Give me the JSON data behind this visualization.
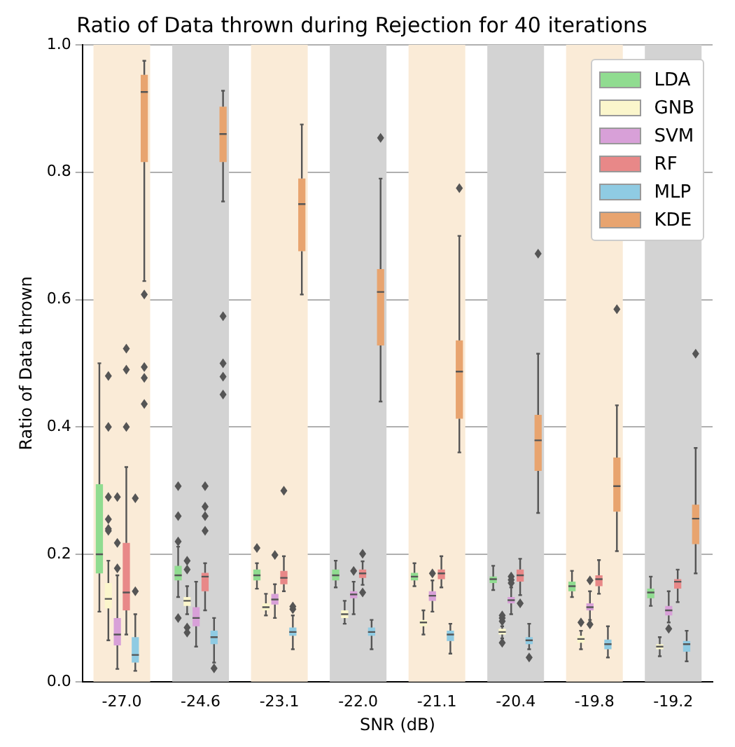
{
  "chart_data": {
    "type": "box",
    "title": "Ratio of Data thrown during Rejection for 40 iterations",
    "xlabel": "SNR (dB)",
    "ylabel": "Ratio of Data thrown",
    "categories": [
      "-27.0",
      "-24.6",
      "-23.1",
      "-22.0",
      "-21.1",
      "-20.4",
      "-19.8",
      "-19.2"
    ],
    "ylim": [
      0,
      1
    ],
    "yticks": [
      {
        "value": 0,
        "label": "0.0"
      },
      {
        "value": 0.2,
        "label": "0.2"
      },
      {
        "value": 0.4,
        "label": "0.4"
      },
      {
        "value": 0.6,
        "label": "0.6"
      },
      {
        "value": 0.8,
        "label": "0.8"
      },
      {
        "value": 1,
        "label": "1.0"
      }
    ],
    "grid": "y",
    "legend": "top right",
    "bands": [
      {
        "axis": "x",
        "from": "-27.0",
        "to": "-27.0",
        "color": "#faebd7"
      },
      {
        "axis": "x",
        "from": "-24.6",
        "to": "-24.6",
        "color": "#d3d3d3"
      },
      {
        "axis": "x",
        "from": "-23.1",
        "to": "-23.1",
        "color": "#faebd7"
      },
      {
        "axis": "x",
        "from": "-22.0",
        "to": "-22.0",
        "color": "#d3d3d3"
      },
      {
        "axis": "x",
        "from": "-21.1",
        "to": "-21.1",
        "color": "#faebd7"
      },
      {
        "axis": "x",
        "from": "-20.4",
        "to": "-20.4",
        "color": "#d3d3d3"
      },
      {
        "axis": "x",
        "from": "-19.8",
        "to": "-19.8",
        "color": "#faebd7"
      },
      {
        "axis": "x",
        "from": "-19.2",
        "to": "-19.2",
        "color": "#d3d3d3"
      }
    ],
    "series": [
      {
        "name": "LDA",
        "color": "#90dc90",
        "boxes": [
          {
            "low": 0.11,
            "q1": 0.17,
            "median": 0.2,
            "q3": 0.31,
            "high": 0.5
          },
          {
            "low": 0.133,
            "q1": 0.159,
            "median": 0.167,
            "q3": 0.182,
            "high": 0.212,
            "outliers": [
              0.307,
              0.26,
              0.22,
              0.1
            ]
          },
          {
            "low": 0.146,
            "q1": 0.159,
            "median": 0.167,
            "q3": 0.176,
            "high": 0.186,
            "outliers": [
              0.21
            ]
          },
          {
            "low": 0.148,
            "q1": 0.159,
            "median": 0.167,
            "q3": 0.176,
            "high": 0.19
          },
          {
            "low": 0.15,
            "q1": 0.159,
            "median": 0.165,
            "q3": 0.171,
            "high": 0.186
          },
          {
            "low": 0.144,
            "q1": 0.155,
            "median": 0.161,
            "q3": 0.165,
            "high": 0.182
          },
          {
            "low": 0.133,
            "q1": 0.142,
            "median": 0.15,
            "q3": 0.157,
            "high": 0.174
          },
          {
            "low": 0.119,
            "q1": 0.131,
            "median": 0.14,
            "q3": 0.146,
            "high": 0.165
          }
        ]
      },
      {
        "name": "GNB",
        "color": "#fbf6cc",
        "boxes": [
          {
            "low": 0.065,
            "q1": 0.115,
            "median": 0.13,
            "q3": 0.155,
            "high": 0.19,
            "outliers": [
              0.48,
              0.4,
              0.29,
              0.255,
              0.24,
              0.237
            ]
          },
          {
            "low": 0.106,
            "q1": 0.119,
            "median": 0.127,
            "q3": 0.133,
            "high": 0.15,
            "outliers": [
              0.19,
              0.176,
              0.085,
              0.077
            ]
          },
          {
            "low": 0.104,
            "q1": 0.112,
            "median": 0.117,
            "q3": 0.123,
            "high": 0.138
          },
          {
            "low": 0.091,
            "q1": 0.1,
            "median": 0.106,
            "q3": 0.112,
            "high": 0.127
          },
          {
            "low": 0.074,
            "q1": 0.087,
            "median": 0.093,
            "q3": 0.097,
            "high": 0.112
          },
          {
            "low": 0.068,
            "q1": 0.074,
            "median": 0.078,
            "q3": 0.083,
            "high": 0.087,
            "outliers": [
              0.095,
              0.1,
              0.104,
              0.061
            ]
          },
          {
            "low": 0.051,
            "q1": 0.061,
            "median": 0.067,
            "q3": 0.072,
            "high": 0.08,
            "outliers": [
              0.093
            ]
          },
          {
            "low": 0.04,
            "q1": 0.051,
            "median": 0.055,
            "q3": 0.059,
            "high": 0.07
          }
        ]
      },
      {
        "name": "SVM",
        "color": "#d8a0d8",
        "boxes": [
          {
            "low": 0.02,
            "q1": 0.057,
            "median": 0.074,
            "q3": 0.1,
            "high": 0.167,
            "outliers": [
              0.29,
              0.218,
              0.178
            ]
          },
          {
            "low": 0.055,
            "q1": 0.087,
            "median": 0.1,
            "q3": 0.117,
            "high": 0.157
          },
          {
            "low": 0.1,
            "q1": 0.121,
            "median": 0.129,
            "q3": 0.138,
            "high": 0.153,
            "outliers": [
              0.199
            ]
          },
          {
            "low": 0.106,
            "q1": 0.131,
            "median": 0.137,
            "q3": 0.142,
            "high": 0.157,
            "outliers": [
              0.174
            ]
          },
          {
            "low": 0.11,
            "q1": 0.127,
            "median": 0.135,
            "q3": 0.142,
            "high": 0.159,
            "outliers": [
              0.17
            ]
          },
          {
            "low": 0.106,
            "q1": 0.123,
            "median": 0.128,
            "q3": 0.133,
            "high": 0.148,
            "outliers": [
              0.165,
              0.16,
              0.155
            ]
          },
          {
            "low": 0.097,
            "q1": 0.112,
            "median": 0.117,
            "q3": 0.123,
            "high": 0.142,
            "outliers": [
              0.159,
              0.09
            ]
          },
          {
            "low": 0.093,
            "q1": 0.104,
            "median": 0.112,
            "q3": 0.119,
            "high": 0.142,
            "outliers": [
              0.083
            ]
          }
        ]
      },
      {
        "name": "RF",
        "color": "#e88888",
        "boxes": [
          {
            "low": 0.074,
            "q1": 0.112,
            "median": 0.14,
            "q3": 0.218,
            "high": 0.337,
            "outliers": [
              0.523,
              0.49,
              0.4
            ]
          },
          {
            "low": 0.112,
            "q1": 0.142,
            "median": 0.165,
            "q3": 0.171,
            "high": 0.186,
            "outliers": [
              0.307,
              0.275,
              0.26,
              0.237
            ]
          },
          {
            "low": 0.142,
            "q1": 0.153,
            "median": 0.163,
            "q3": 0.174,
            "high": 0.197,
            "outliers": [
              0.3
            ]
          },
          {
            "low": 0.152,
            "q1": 0.163,
            "median": 0.17,
            "q3": 0.176,
            "high": 0.189,
            "outliers": [
              0.201,
              0.14
            ]
          },
          {
            "low": 0.148,
            "q1": 0.161,
            "median": 0.17,
            "q3": 0.176,
            "high": 0.197
          },
          {
            "low": 0.136,
            "q1": 0.157,
            "median": 0.167,
            "q3": 0.176,
            "high": 0.193,
            "outliers": [
              0.123
            ]
          },
          {
            "low": 0.138,
            "q1": 0.15,
            "median": 0.161,
            "q3": 0.167,
            "high": 0.191
          },
          {
            "low": 0.125,
            "q1": 0.146,
            "median": 0.157,
            "q3": 0.161,
            "high": 0.176
          }
        ]
      },
      {
        "name": "MLP",
        "color": "#8fcbe3",
        "boxes": [
          {
            "low": 0.017,
            "q1": 0.03,
            "median": 0.042,
            "q3": 0.07,
            "high": 0.106,
            "outliers": [
              0.288,
              0.142
            ]
          },
          {
            "low": 0.03,
            "q1": 0.059,
            "median": 0.07,
            "q3": 0.08,
            "high": 0.1,
            "outliers": [
              0.021
            ]
          },
          {
            "low": 0.051,
            "q1": 0.072,
            "median": 0.078,
            "q3": 0.085,
            "high": 0.104,
            "outliers": [
              0.114,
              0.118
            ]
          },
          {
            "low": 0.051,
            "q1": 0.072,
            "median": 0.078,
            "q3": 0.085,
            "high": 0.097
          },
          {
            "low": 0.044,
            "q1": 0.064,
            "median": 0.074,
            "q3": 0.08,
            "high": 0.091
          },
          {
            "low": 0.051,
            "q1": 0.059,
            "median": 0.065,
            "q3": 0.07,
            "high": 0.091,
            "outliers": [
              0.038
            ]
          },
          {
            "low": 0.038,
            "q1": 0.051,
            "median": 0.059,
            "q3": 0.066,
            "high": 0.087
          },
          {
            "low": 0.032,
            "q1": 0.047,
            "median": 0.059,
            "q3": 0.064,
            "high": 0.08
          }
        ]
      },
      {
        "name": "KDE",
        "color": "#e8a46f",
        "boxes": [
          {
            "low": 0.629,
            "q1": 0.816,
            "median": 0.926,
            "q3": 0.953,
            "high": 0.975,
            "outliers": [
              0.608,
              0.494,
              0.477,
              0.436
            ]
          },
          {
            "low": 0.754,
            "q1": 0.816,
            "median": 0.86,
            "q3": 0.903,
            "high": 0.928,
            "outliers": [
              0.574,
              0.5,
              0.479,
              0.451
            ]
          },
          {
            "low": 0.608,
            "q1": 0.676,
            "median": 0.75,
            "q3": 0.79,
            "high": 0.875
          },
          {
            "low": 0.44,
            "q1": 0.528,
            "median": 0.612,
            "q3": 0.648,
            "high": 0.79,
            "outliers": [
              0.854
            ]
          },
          {
            "low": 0.36,
            "q1": 0.413,
            "median": 0.487,
            "q3": 0.536,
            "high": 0.7,
            "outliers": [
              0.775
            ]
          },
          {
            "low": 0.265,
            "q1": 0.331,
            "median": 0.379,
            "q3": 0.419,
            "high": 0.515,
            "outliers": [
              0.672
            ]
          },
          {
            "low": 0.205,
            "q1": 0.267,
            "median": 0.307,
            "q3": 0.352,
            "high": 0.434,
            "outliers": [
              0.585
            ]
          },
          {
            "low": 0.17,
            "q1": 0.216,
            "median": 0.256,
            "q3": 0.278,
            "high": 0.367,
            "outliers": [
              0.515
            ]
          }
        ]
      }
    ]
  }
}
